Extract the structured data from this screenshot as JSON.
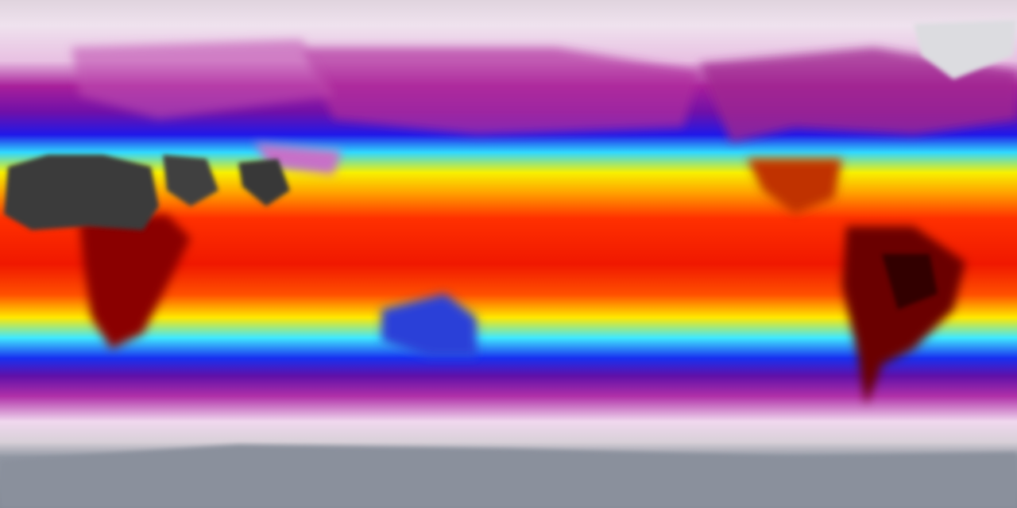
{
  "map": {
    "projection": "equirectangular",
    "kind": "global surface temperature",
    "colormap": [
      "#8a909c",
      "#e8dce6",
      "#f4e4f2",
      "#b0209a",
      "#7a10a0",
      "#2a10e0",
      "#1860ff",
      "#30e0ff",
      "#fff000",
      "#ffa000",
      "#ff3000",
      "#d00000",
      "#5a0000",
      "#3a3a3a"
    ],
    "land_colors": {
      "desert_hot": "#3a3a3a",
      "tropical_land": "#6a0000",
      "australia": "#2040d0",
      "ice_sheet": "#d8d8dc",
      "antarctica": "#8c929e"
    }
  }
}
